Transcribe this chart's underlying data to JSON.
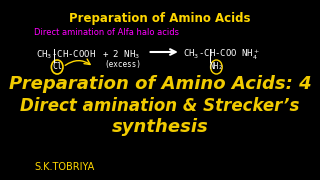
{
  "bg_color": "#000000",
  "title_text": "Preparation of Amino Acids",
  "title_color": "#FFD700",
  "subtitle_text": "Direct amination of Alfa halo acids",
  "subtitle_color": "#FF00FF",
  "reaction_left": "CH₃–CH–COOH  + 2 NH₃",
  "reaction_excess": "(excess)",
  "reaction_right": "CH₃–CH–COOH NH₂",
  "watermark_line1": "Preparation of Amino Acids: 4",
  "watermark_line2": "Direct amination & Strecker’s",
  "watermark_line3": "synthesis",
  "watermark_color": "#FFD700",
  "author_text": "S.K.TOBRIYA",
  "author_color": "#FFD700",
  "cl_label": "Cl",
  "nh2_label": "NH₂",
  "arrow_color": "#FFFFFF",
  "circle_color": "#FFD700",
  "white": "#FFFFFF"
}
